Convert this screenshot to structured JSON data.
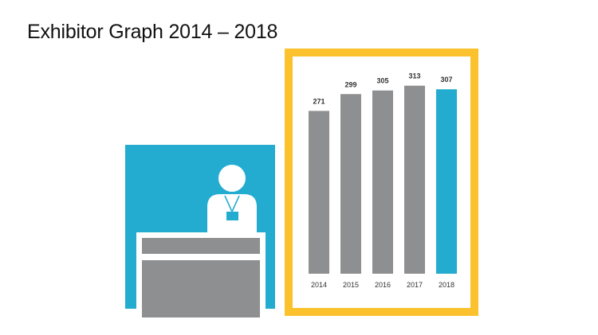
{
  "title": "Exhibitor Graph 2014 – 2018",
  "colors": {
    "booth": "#23acd0",
    "frame": "#fbc22d",
    "bar": "#8e8f91",
    "highlight": "#23acd0",
    "desk": "#8e8f91"
  },
  "icons": [
    "exhibitor-booth-icon",
    "person-with-badge-icon",
    "desk-icon"
  ],
  "chart_data": {
    "type": "bar",
    "title": "Exhibitor Graph 2014 – 2018",
    "categories": [
      "2014",
      "2015",
      "2016",
      "2017",
      "2018"
    ],
    "values": [
      271,
      299,
      305,
      313,
      307
    ],
    "highlight_index": 4,
    "xlabel": "",
    "ylabel": "",
    "ylim": [
      0,
      330
    ],
    "grid": false,
    "legend": "none"
  }
}
